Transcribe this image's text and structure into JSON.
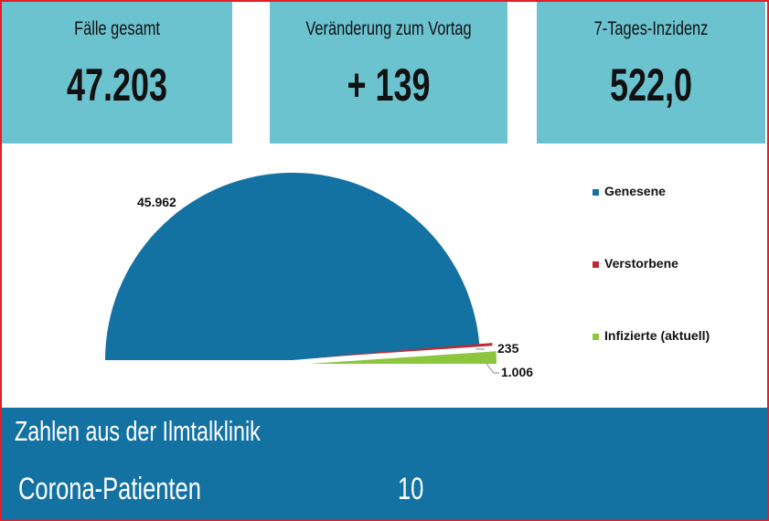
{
  "cards": [
    {
      "label": "Fälle gesamt",
      "value": "47.203"
    },
    {
      "label": "Veränderung zum Vortag",
      "value": "+ 139"
    },
    {
      "label": "7-Tages-Inzidenz",
      "value": "522,0"
    }
  ],
  "chart_data": {
    "type": "pie",
    "variant": "half-pie",
    "slices": [
      {
        "name": "Genesene",
        "value": 45962,
        "label": "45.962",
        "color": "#1472a3"
      },
      {
        "name": "Verstorbene",
        "value": 235,
        "label": "235",
        "color": "#c0282d"
      },
      {
        "name": "Infizierte (aktuell)",
        "value": 1006,
        "label": "1.006",
        "color": "#8cc63f"
      }
    ],
    "legend_position": "right"
  },
  "clinic": {
    "title": "Zahlen aus der Ilmtalklinik",
    "row_label": "Corona-Patienten",
    "row_value": "10"
  },
  "colors": {
    "border": "#e01f2b",
    "card": "#6cc3d0",
    "band": "#1472a3"
  }
}
